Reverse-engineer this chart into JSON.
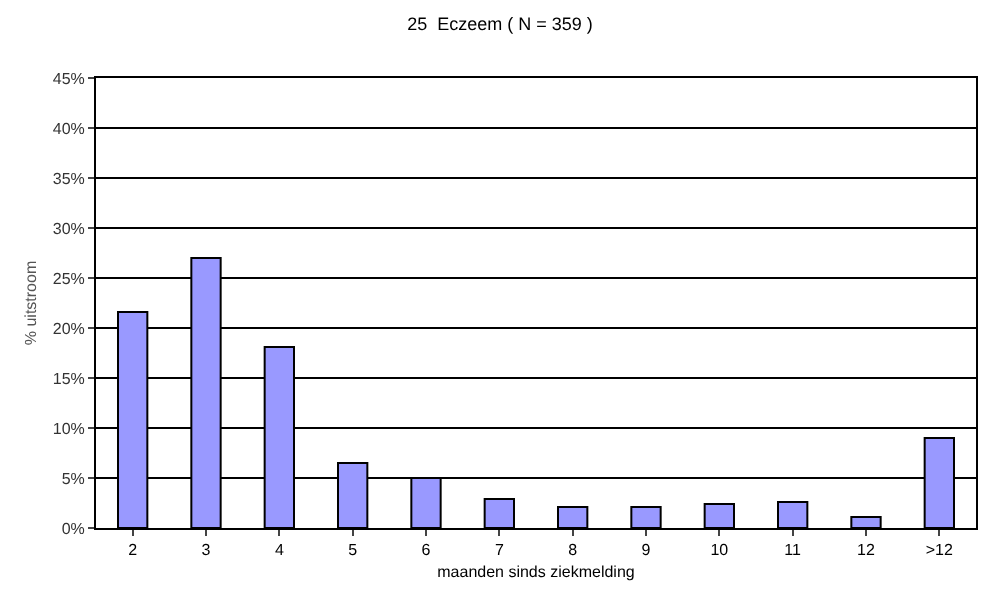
{
  "chart_data": {
    "type": "bar",
    "title": "25  Eczeem ( N = 359 )",
    "xlabel": "maanden sinds ziekmelding",
    "ylabel": "% uitstroom",
    "categories": [
      "2",
      "3",
      "4",
      "5",
      "6",
      "7",
      "8",
      "9",
      "10",
      "11",
      "12",
      ">12"
    ],
    "values": [
      21.6,
      27.0,
      18.1,
      6.5,
      5.0,
      2.9,
      2.1,
      2.1,
      2.4,
      2.6,
      1.1,
      9.0
    ],
    "color": "#9999ff",
    "ylim": [
      0,
      45
    ],
    "yticks": [
      {
        "value": 0,
        "label": "0%"
      },
      {
        "value": 5,
        "label": "5%"
      },
      {
        "value": 10,
        "label": "10%"
      },
      {
        "value": 15,
        "label": "15%"
      },
      {
        "value": 20,
        "label": "20%"
      },
      {
        "value": 25,
        "label": "25%"
      },
      {
        "value": 30,
        "label": "30%"
      },
      {
        "value": 35,
        "label": "35%"
      },
      {
        "value": 40,
        "label": "40%"
      },
      {
        "value": 45,
        "label": "45%"
      }
    ],
    "grid": "y",
    "legend": false
  }
}
